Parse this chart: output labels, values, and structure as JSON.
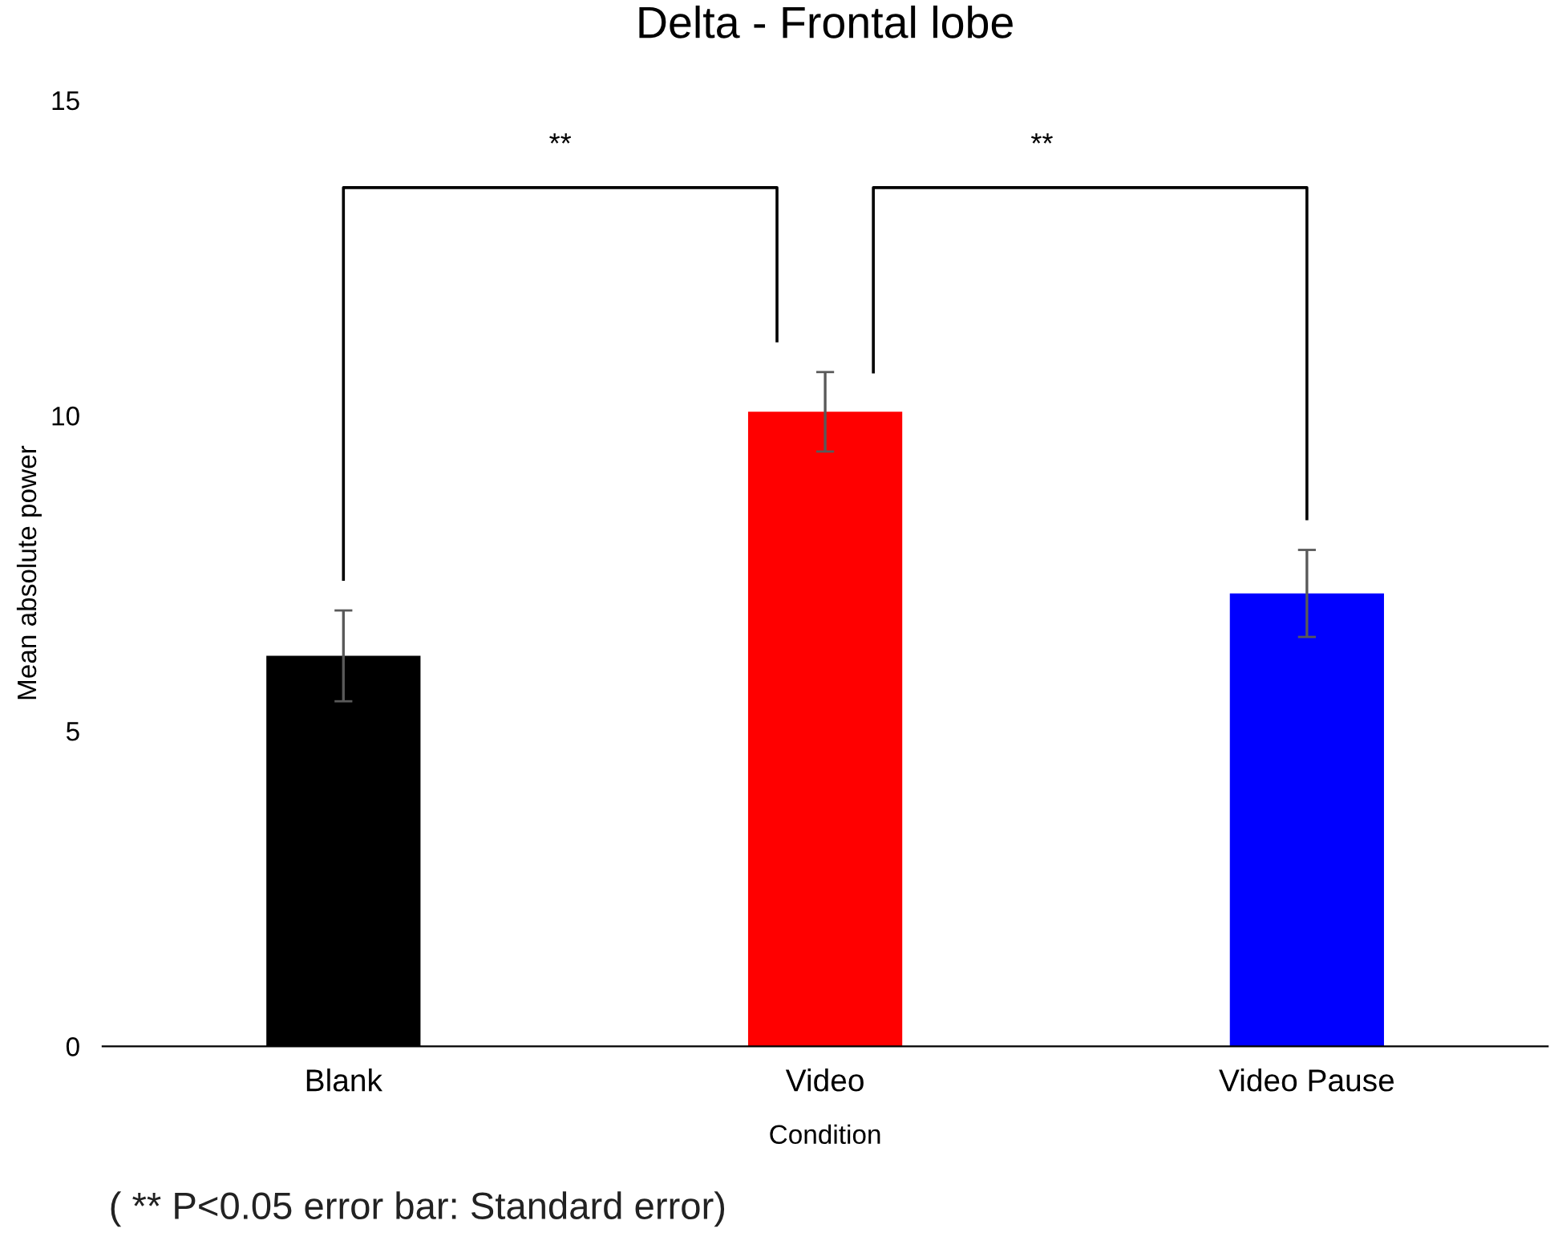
{
  "chart_data": {
    "type": "bar",
    "title": "Delta - Frontal lobe",
    "xlabel": "Condition",
    "ylabel": "Mean absolute power",
    "categories": [
      "Blank",
      "Video",
      "Video Pause"
    ],
    "values": [
      6.19,
      10.06,
      7.18
    ],
    "colors": [
      "#000000",
      "#ff0000",
      "#0000ff"
    ],
    "errors": [
      0.72,
      0.63,
      0.69
    ],
    "ylim": [
      0,
      15
    ],
    "yticks": [
      0,
      5,
      10,
      15
    ],
    "grid": false,
    "legend": false,
    "annotations": [
      "**",
      "**",
      "( ** P<0.05 error bar: Standard error)"
    ]
  }
}
